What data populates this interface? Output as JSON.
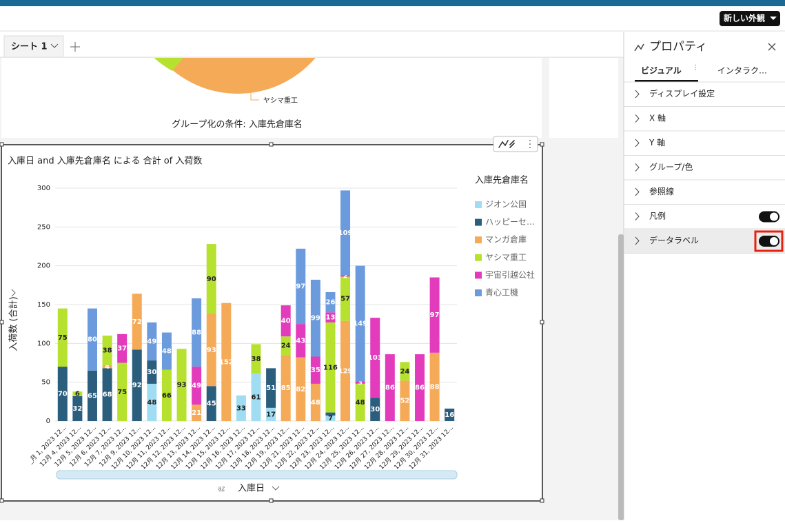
{
  "ui": {
    "new_look": "新しい外観",
    "sheet_tab": "シート 1",
    "pie_slice_label": "ヤシマ重工",
    "pie_group_by": "グループ化の条件: 入庫先倉庫名",
    "panel_title": "プロパティ",
    "tabs": [
      "ビジュアル",
      "インタラク…"
    ],
    "menu": [
      "ディスプレイ設定",
      "X 軸",
      "Y 軸",
      "グループ/色",
      "参照線",
      "凡例",
      "データラベル"
    ]
  },
  "chart_data": {
    "type": "stacked-bar",
    "title": "入庫日 and 入庫先倉庫名 による 合計 of 入荷数",
    "x_label": "入庫日",
    "y_label": "入荷数 (合計)",
    "legend_title": "入庫先倉庫名",
    "categories": [
      "_月 1, 2023 12...",
      "12月 4, 2023 12...",
      "12月 5, 2023 12...",
      "12月 6, 2023 12...",
      "12月 7, 2023 12...",
      "12月 9, 2023 12...",
      "12月 10, 2023 12...",
      "12月 11, 2023 12...",
      "12月 12, 2023 12...",
      "12月 13, 2023 12...",
      "12月 14, 2023 12...",
      "12月 15, 2023 12...",
      "12月 16, 2023 12...",
      "12月 17, 2023 12...",
      "12月 18, 2023 12...",
      "12月 19, 2023 12...",
      "12月 21, 2023 12...",
      "12月 22, 2023 12...",
      "12月 23, 2023 12...",
      "12月 24, 2023 12...",
      "12月 25, 2023 12...",
      "12月 26, 2023 12...",
      "12月 27, 2023 12...",
      "12月 28, 2023 12...",
      "12月 29, 2023 12...",
      "12月 30, 2023 12...",
      "12月 31, 2023 12..."
    ],
    "series": [
      {
        "name": "ジオン公国",
        "color": "#a0dcf2",
        "values": [
          null,
          null,
          null,
          null,
          null,
          null,
          48,
          null,
          null,
          null,
          null,
          null,
          33,
          61,
          17,
          null,
          null,
          null,
          7,
          null,
          null,
          null,
          null,
          null,
          null,
          null,
          null
        ]
      },
      {
        "name": "ハッピーセ…",
        "color": "#2b5d7d",
        "values": [
          70,
          32,
          65,
          68,
          null,
          92,
          30,
          null,
          null,
          null,
          45,
          null,
          null,
          null,
          51,
          null,
          null,
          null,
          4,
          null,
          null,
          30,
          null,
          null,
          null,
          null,
          16
        ],
        "value_labels": [
          "70",
          "32",
          "65",
          "68",
          null,
          "92",
          "30",
          null,
          null,
          null,
          "45",
          null,
          null,
          null,
          "51",
          null,
          null,
          null,
          null,
          null,
          null,
          "30",
          null,
          null,
          null,
          null,
          "16"
        ]
      },
      {
        "name": "マンガ倉庫",
        "color": "#f5aa58",
        "values": [
          null,
          null,
          null,
          4,
          null,
          72,
          null,
          null,
          null,
          21,
          93,
          152,
          null,
          null,
          null,
          85,
          82,
          48,
          null,
          129,
          null,
          null,
          null,
          52,
          null,
          88,
          null
        ]
      },
      {
        "name": "ヤシマ重工",
        "color": "#b6e12f",
        "values": [
          75,
          6,
          null,
          38,
          75,
          null,
          null,
          66,
          93,
          null,
          90,
          null,
          null,
          38,
          null,
          24,
          null,
          null,
          116,
          57,
          48,
          null,
          null,
          24,
          null,
          null,
          null
        ]
      },
      {
        "name": "宇宙引越公社",
        "color": "#e23cbc",
        "values": [
          null,
          null,
          null,
          null,
          37,
          null,
          null,
          null,
          null,
          49,
          null,
          null,
          null,
          null,
          null,
          40,
          43,
          35,
          13,
          2,
          3,
          103,
          86,
          null,
          86,
          97,
          null
        ]
      },
      {
        "name": "青心工機",
        "color": "#6b9bdd",
        "values": [
          null,
          null,
          80,
          null,
          null,
          null,
          49,
          48,
          null,
          88,
          null,
          null,
          null,
          null,
          null,
          null,
          97,
          99,
          26,
          109,
          149,
          null,
          null,
          null,
          null,
          null,
          null
        ]
      }
    ],
    "ylim": [
      0,
      300
    ],
    "yticks": [
      0,
      50,
      100,
      150,
      200,
      250,
      300
    ],
    "grid": true,
    "legend": "right"
  }
}
